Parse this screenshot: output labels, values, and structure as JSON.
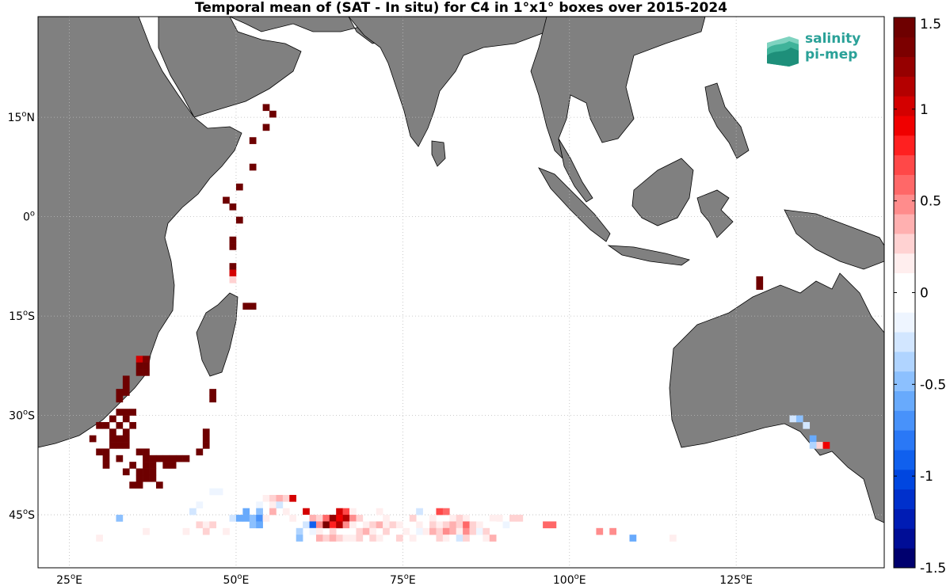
{
  "title": "Temporal mean of (SAT - In situ) for C4 in 1°x1° boxes over 2015-2024",
  "lat_ticks": [
    {
      "lat": 15,
      "deg": "15",
      "hemi": "N"
    },
    {
      "lat": 0,
      "deg": "0",
      "hemi": ""
    },
    {
      "lat": -15,
      "deg": "15",
      "hemi": "S"
    },
    {
      "lat": -30,
      "deg": "30",
      "hemi": "S"
    },
    {
      "lat": -45,
      "deg": "45",
      "hemi": "S"
    }
  ],
  "lon_ticks": [
    {
      "lon": 25,
      "deg": "25",
      "hemi": "E"
    },
    {
      "lon": 50,
      "deg": "50",
      "hemi": "E"
    },
    {
      "lon": 75,
      "deg": "75",
      "hemi": "E"
    },
    {
      "lon": 100,
      "deg": "100",
      "hemi": "E"
    },
    {
      "lon": 125,
      "deg": "125",
      "hemi": "E"
    }
  ],
  "colorbar": {
    "min": -1.5,
    "max": 1.5,
    "labels": [
      "1.5",
      "1",
      "0.5",
      "0",
      "-0.5",
      "-1",
      "-1.5"
    ],
    "label_values": [
      1.5,
      1,
      0.5,
      0,
      -0.5,
      -1,
      -1.5
    ],
    "colors": [
      "#00006e",
      "#000d96",
      "#001cb4",
      "#0030cc",
      "#0046e0",
      "#1060ee",
      "#2a78f6",
      "#4892fa",
      "#68aafc",
      "#8cc0fe",
      "#b0d4ff",
      "#d2e6ff",
      "#eef5ff",
      "#ffffff",
      "#ffffff",
      "#ffeeee",
      "#ffd2d2",
      "#ffb0b0",
      "#ff8c8c",
      "#ff6868",
      "#ff4848",
      "#ff2020",
      "#f00000",
      "#d40000",
      "#b40000",
      "#960000",
      "#7c0000",
      "#6e0000"
    ]
  },
  "logo": {
    "line1": "salinity",
    "line2": "pi-mep",
    "color": "#2aa198"
  },
  "map_colors": {
    "land": "#808080",
    "grid": "#bbbbbb",
    "coast": "#000000"
  },
  "boxes": [
    {
      "lon": 54,
      "lat": 16,
      "v": 1.6
    },
    {
      "lon": 55,
      "lat": 15,
      "v": 1.6
    },
    {
      "lon": 54,
      "lat": 13,
      "v": 1.6
    },
    {
      "lon": 52,
      "lat": 11,
      "v": 1.6
    },
    {
      "lon": 52,
      "lat": 7,
      "v": 1.6
    },
    {
      "lon": 50,
      "lat": 4,
      "v": 1.6
    },
    {
      "lon": 48,
      "lat": 2,
      "v": 1.6
    },
    {
      "lon": 49,
      "lat": 1,
      "v": 1.6
    },
    {
      "lon": 50,
      "lat": -1,
      "v": 1.6
    },
    {
      "lon": 49,
      "lat": -4,
      "v": 1.6
    },
    {
      "lon": 49,
      "lat": -5,
      "v": 1.6
    },
    {
      "lon": 49,
      "lat": -8,
      "v": 1.6
    },
    {
      "lon": 49,
      "lat": -9,
      "v": 1.0
    },
    {
      "lon": 49,
      "lat": -10,
      "v": 0.3
    },
    {
      "lon": 51,
      "lat": -14,
      "v": 1.6
    },
    {
      "lon": 52,
      "lat": -14,
      "v": 1.6
    },
    {
      "lon": 128,
      "lat": -10,
      "v": 1.6
    },
    {
      "lon": 128,
      "lat": -11,
      "v": 1.6
    },
    {
      "lon": 35,
      "lat": -22,
      "v": 1.0
    },
    {
      "lon": 36,
      "lat": -22,
      "v": 1.3
    },
    {
      "lon": 35,
      "lat": -23,
      "v": 1.6
    },
    {
      "lon": 36,
      "lat": -23,
      "v": 1.6
    },
    {
      "lon": 35,
      "lat": -24,
      "v": 1.6
    },
    {
      "lon": 36,
      "lat": -24,
      "v": 1.6
    },
    {
      "lon": 33,
      "lat": -25,
      "v": 1.6
    },
    {
      "lon": 33,
      "lat": -26,
      "v": 1.6
    },
    {
      "lon": 32,
      "lat": -27,
      "v": 1.6
    },
    {
      "lon": 33,
      "lat": -27,
      "v": 1.6
    },
    {
      "lon": 32,
      "lat": -28,
      "v": 1.6
    },
    {
      "lon": 46,
      "lat": -27,
      "v": 1.6
    },
    {
      "lon": 46,
      "lat": -28,
      "v": 1.6
    },
    {
      "lon": 32,
      "lat": -30,
      "v": 1.6
    },
    {
      "lon": 33,
      "lat": -30,
      "v": 1.6
    },
    {
      "lon": 34,
      "lat": -30,
      "v": 1.6
    },
    {
      "lon": 31,
      "lat": -31,
      "v": 1.6
    },
    {
      "lon": 33,
      "lat": -31,
      "v": 1.6
    },
    {
      "lon": 29,
      "lat": -32,
      "v": 1.6
    },
    {
      "lon": 30,
      "lat": -32,
      "v": 1.6
    },
    {
      "lon": 32,
      "lat": -32,
      "v": 1.6
    },
    {
      "lon": 34,
      "lat": -32,
      "v": 1.6
    },
    {
      "lon": 31,
      "lat": -33,
      "v": 1.6
    },
    {
      "lon": 33,
      "lat": -33,
      "v": 1.6
    },
    {
      "lon": 28,
      "lat": -34,
      "v": 1.6
    },
    {
      "lon": 31,
      "lat": -34,
      "v": 1.6
    },
    {
      "lon": 32,
      "lat": -34,
      "v": 1.6
    },
    {
      "lon": 33,
      "lat": -34,
      "v": 1.6
    },
    {
      "lon": 45,
      "lat": -33,
      "v": 1.6
    },
    {
      "lon": 45,
      "lat": -34,
      "v": 1.6
    },
    {
      "lon": 31,
      "lat": -35,
      "v": 1.6
    },
    {
      "lon": 32,
      "lat": -35,
      "v": 1.6
    },
    {
      "lon": 33,
      "lat": -35,
      "v": 1.6
    },
    {
      "lon": 45,
      "lat": -35,
      "v": 1.6
    },
    {
      "lon": 29,
      "lat": -36,
      "v": 1.6
    },
    {
      "lon": 30,
      "lat": -36,
      "v": 1.6
    },
    {
      "lon": 35,
      "lat": -36,
      "v": 1.6
    },
    {
      "lon": 36,
      "lat": -36,
      "v": 1.6
    },
    {
      "lon": 44,
      "lat": -36,
      "v": 1.6
    },
    {
      "lon": 30,
      "lat": -37,
      "v": 1.6
    },
    {
      "lon": 32,
      "lat": -37,
      "v": 1.6
    },
    {
      "lon": 36,
      "lat": -37,
      "v": 1.6
    },
    {
      "lon": 37,
      "lat": -37,
      "v": 1.6
    },
    {
      "lon": 38,
      "lat": -37,
      "v": 1.6
    },
    {
      "lon": 39,
      "lat": -37,
      "v": 1.6
    },
    {
      "lon": 40,
      "lat": -37,
      "v": 1.6
    },
    {
      "lon": 41,
      "lat": -37,
      "v": 1.6
    },
    {
      "lon": 42,
      "lat": -37,
      "v": 1.6
    },
    {
      "lon": 30,
      "lat": -38,
      "v": 1.6
    },
    {
      "lon": 34,
      "lat": -38,
      "v": 1.6
    },
    {
      "lon": 36,
      "lat": -38,
      "v": 1.6
    },
    {
      "lon": 37,
      "lat": -38,
      "v": 1.6
    },
    {
      "lon": 39,
      "lat": -38,
      "v": 1.6
    },
    {
      "lon": 40,
      "lat": -38,
      "v": 1.6
    },
    {
      "lon": 33,
      "lat": -39,
      "v": 1.6
    },
    {
      "lon": 35,
      "lat": -39,
      "v": 1.6
    },
    {
      "lon": 36,
      "lat": -39,
      "v": 1.6
    },
    {
      "lon": 37,
      "lat": -39,
      "v": 1.6
    },
    {
      "lon": 35,
      "lat": -40,
      "v": 1.6
    },
    {
      "lon": 36,
      "lat": -40,
      "v": 1.6
    },
    {
      "lon": 37,
      "lat": -40,
      "v": 1.6
    },
    {
      "lon": 34,
      "lat": -41,
      "v": 1.6
    },
    {
      "lon": 35,
      "lat": -41,
      "v": 1.6
    },
    {
      "lon": 38,
      "lat": -41,
      "v": 1.6
    },
    {
      "lon": 133,
      "lat": -31,
      "v": -0.3
    },
    {
      "lon": 134,
      "lat": -31,
      "v": -0.5
    },
    {
      "lon": 135,
      "lat": -32,
      "v": -0.3
    },
    {
      "lon": 136,
      "lat": -34,
      "v": -0.6
    },
    {
      "lon": 137,
      "lat": -35,
      "v": 0.3
    },
    {
      "lon": 136,
      "lat": -35,
      "v": -0.4
    },
    {
      "lon": 138,
      "lat": -35,
      "v": 0.9
    },
    {
      "lon": 46,
      "lat": -42,
      "v": -0.2
    },
    {
      "lon": 47,
      "lat": -42,
      "v": -0.2
    },
    {
      "lon": 45,
      "lat": -43,
      "v": -0.1
    },
    {
      "lon": 54,
      "lat": -43,
      "v": 0.2
    },
    {
      "lon": 55,
      "lat": -43,
      "v": 0.3
    },
    {
      "lon": 56,
      "lat": -43,
      "v": 0.4
    },
    {
      "lon": 57,
      "lat": -43,
      "v": 0.3
    },
    {
      "lon": 58,
      "lat": -43,
      "v": 1.0
    },
    {
      "lon": 53,
      "lat": -44,
      "v": -0.2
    },
    {
      "lon": 55,
      "lat": -44,
      "v": 0.2
    },
    {
      "lon": 56,
      "lat": -44,
      "v": -0.3
    },
    {
      "lon": 44,
      "lat": -44,
      "v": -0.2
    },
    {
      "lon": 43,
      "lat": -45,
      "v": -0.3
    },
    {
      "lon": 51,
      "lat": -45,
      "v": -0.6
    },
    {
      "lon": 53,
      "lat": -45,
      "v": -0.5
    },
    {
      "lon": 55,
      "lat": -45,
      "v": 0.4
    },
    {
      "lon": 57,
      "lat": -45,
      "v": 0.2
    },
    {
      "lon": 60,
      "lat": -45,
      "v": 1.0
    },
    {
      "lon": 65,
      "lat": -45,
      "v": 1.0
    },
    {
      "lon": 66,
      "lat": -45,
      "v": 0.7
    },
    {
      "lon": 67,
      "lat": -45,
      "v": 0.2
    },
    {
      "lon": 71,
      "lat": -45,
      "v": 0.2
    },
    {
      "lon": 77,
      "lat": -45,
      "v": -0.3
    },
    {
      "lon": 80,
      "lat": -45,
      "v": 0.7
    },
    {
      "lon": 81,
      "lat": -45,
      "v": 0.6
    },
    {
      "lon": 32,
      "lat": -46,
      "v": -0.5
    },
    {
      "lon": 49,
      "lat": -46,
      "v": -0.3
    },
    {
      "lon": 50,
      "lat": -46,
      "v": -0.6
    },
    {
      "lon": 51,
      "lat": -46,
      "v": -0.6
    },
    {
      "lon": 52,
      "lat": -46,
      "v": -0.5
    },
    {
      "lon": 53,
      "lat": -46,
      "v": -0.7
    },
    {
      "lon": 54,
      "lat": -46,
      "v": 0.2
    },
    {
      "lon": 58,
      "lat": -46,
      "v": 0.2
    },
    {
      "lon": 60,
      "lat": -46,
      "v": -0.1
    },
    {
      "lon": 61,
      "lat": -46,
      "v": 0.4
    },
    {
      "lon": 62,
      "lat": -46,
      "v": 0.3
    },
    {
      "lon": 63,
      "lat": -46,
      "v": 0.6
    },
    {
      "lon": 64,
      "lat": -46,
      "v": 1.2
    },
    {
      "lon": 65,
      "lat": -46,
      "v": 0.9
    },
    {
      "lon": 66,
      "lat": -46,
      "v": 1.1
    },
    {
      "lon": 67,
      "lat": -46,
      "v": 0.5
    },
    {
      "lon": 68,
      "lat": -46,
      "v": 0.3
    },
    {
      "lon": 72,
      "lat": -46,
      "v": 0.2
    },
    {
      "lon": 76,
      "lat": -46,
      "v": 0.3
    },
    {
      "lon": 79,
      "lat": -46,
      "v": 0.2
    },
    {
      "lon": 82,
      "lat": -46,
      "v": 0.2
    },
    {
      "lon": 83,
      "lat": -46,
      "v": 0.3
    },
    {
      "lon": 84,
      "lat": -46,
      "v": 0.2
    },
    {
      "lon": 88,
      "lat": -46,
      "v": 0.2
    },
    {
      "lon": 89,
      "lat": -46,
      "v": 0.2
    },
    {
      "lon": 90,
      "lat": -46,
      "v": 0.1
    },
    {
      "lon": 91,
      "lat": -46,
      "v": 0.3
    },
    {
      "lon": 92,
      "lat": -46,
      "v": 0.3
    },
    {
      "lon": 44,
      "lat": -47,
      "v": 0.3
    },
    {
      "lon": 45,
      "lat": -47,
      "v": 0.2
    },
    {
      "lon": 46,
      "lat": -47,
      "v": 0.3
    },
    {
      "lon": 52,
      "lat": -47,
      "v": -0.5
    },
    {
      "lon": 53,
      "lat": -47,
      "v": -0.6
    },
    {
      "lon": 60,
      "lat": -47,
      "v": -0.3
    },
    {
      "lon": 61,
      "lat": -47,
      "v": -0.9
    },
    {
      "lon": 62,
      "lat": -47,
      "v": 0.5
    },
    {
      "lon": 63,
      "lat": -47,
      "v": 1.3
    },
    {
      "lon": 64,
      "lat": -47,
      "v": 0.8
    },
    {
      "lon": 65,
      "lat": -47,
      "v": 1.1
    },
    {
      "lon": 66,
      "lat": -47,
      "v": 0.5
    },
    {
      "lon": 67,
      "lat": -47,
      "v": 0.2
    },
    {
      "lon": 69,
      "lat": -47,
      "v": 0.2
    },
    {
      "lon": 70,
      "lat": -47,
      "v": 0.3
    },
    {
      "lon": 71,
      "lat": -47,
      "v": 0.4
    },
    {
      "lon": 72,
      "lat": -47,
      "v": 0.2
    },
    {
      "lon": 73,
      "lat": -47,
      "v": 0.3
    },
    {
      "lon": 74,
      "lat": -47,
      "v": 0.2
    },
    {
      "lon": 77,
      "lat": -47,
      "v": 0.2
    },
    {
      "lon": 78,
      "lat": -47,
      "v": -0.1
    },
    {
      "lon": 79,
      "lat": -47,
      "v": 0.3
    },
    {
      "lon": 80,
      "lat": -47,
      "v": 0.2
    },
    {
      "lon": 81,
      "lat": -47,
      "v": 0.3
    },
    {
      "lon": 82,
      "lat": -47,
      "v": 0.4
    },
    {
      "lon": 83,
      "lat": -47,
      "v": 0.3
    },
    {
      "lon": 84,
      "lat": -47,
      "v": 0.6
    },
    {
      "lon": 85,
      "lat": -47,
      "v": 0.3
    },
    {
      "lon": 86,
      "lat": -47,
      "v": 0.2
    },
    {
      "lon": 88,
      "lat": -47,
      "v": -0.1
    },
    {
      "lon": 90,
      "lat": -47,
      "v": -0.2
    },
    {
      "lon": 96,
      "lat": -47,
      "v": 0.6
    },
    {
      "lon": 97,
      "lat": -47,
      "v": 0.6
    },
    {
      "lon": 36,
      "lat": -48,
      "v": 0.2
    },
    {
      "lon": 42,
      "lat": -48,
      "v": 0.2
    },
    {
      "lon": 45,
      "lat": -48,
      "v": 0.3
    },
    {
      "lon": 48,
      "lat": -48,
      "v": 0.2
    },
    {
      "lon": 59,
      "lat": -48,
      "v": -0.4
    },
    {
      "lon": 61,
      "lat": -48,
      "v": -0.2
    },
    {
      "lon": 62,
      "lat": -48,
      "v": 0.2
    },
    {
      "lon": 64,
      "lat": -48,
      "v": 0.3
    },
    {
      "lon": 68,
      "lat": -48,
      "v": 0.3
    },
    {
      "lon": 69,
      "lat": -48,
      "v": 0.4
    },
    {
      "lon": 70,
      "lat": -48,
      "v": 0.2
    },
    {
      "lon": 72,
      "lat": -48,
      "v": 0.3
    },
    {
      "lon": 75,
      "lat": -48,
      "v": 0.2
    },
    {
      "lon": 77,
      "lat": -48,
      "v": -0.2
    },
    {
      "lon": 78,
      "lat": -48,
      "v": 0.2
    },
    {
      "lon": 79,
      "lat": -48,
      "v": 0.4
    },
    {
      "lon": 80,
      "lat": -48,
      "v": 0.3
    },
    {
      "lon": 81,
      "lat": -48,
      "v": 0.5
    },
    {
      "lon": 82,
      "lat": -48,
      "v": 0.4
    },
    {
      "lon": 83,
      "lat": -48,
      "v": 0.2
    },
    {
      "lon": 84,
      "lat": -48,
      "v": 0.5
    },
    {
      "lon": 85,
      "lat": -48,
      "v": 0.3
    },
    {
      "lon": 86,
      "lat": -48,
      "v": -0.2
    },
    {
      "lon": 87,
      "lat": -48,
      "v": 0.3
    },
    {
      "lon": 104,
      "lat": -48,
      "v": 0.5
    },
    {
      "lon": 106,
      "lat": -48,
      "v": 0.5
    },
    {
      "lon": 29,
      "lat": -49,
      "v": 0.2
    },
    {
      "lon": 59,
      "lat": -49,
      "v": -0.5
    },
    {
      "lon": 62,
      "lat": -49,
      "v": 0.4
    },
    {
      "lon": 63,
      "lat": -49,
      "v": 0.3
    },
    {
      "lon": 64,
      "lat": -49,
      "v": 0.4
    },
    {
      "lon": 65,
      "lat": -49,
      "v": 0.3
    },
    {
      "lon": 66,
      "lat": -49,
      "v": 0.2
    },
    {
      "lon": 67,
      "lat": -49,
      "v": 0.2
    },
    {
      "lon": 68,
      "lat": -49,
      "v": 0.3
    },
    {
      "lon": 70,
      "lat": -49,
      "v": 0.3
    },
    {
      "lon": 71,
      "lat": -49,
      "v": 0.2
    },
    {
      "lon": 74,
      "lat": -49,
      "v": 0.3
    },
    {
      "lon": 76,
      "lat": -49,
      "v": 0.2
    },
    {
      "lon": 80,
      "lat": -49,
      "v": 0.3
    },
    {
      "lon": 81,
      "lat": -49,
      "v": 0.2
    },
    {
      "lon": 82,
      "lat": -49,
      "v": -0.1
    },
    {
      "lon": 83,
      "lat": -49,
      "v": -0.3
    },
    {
      "lon": 84,
      "lat": -49,
      "v": 0.3
    },
    {
      "lon": 87,
      "lat": -49,
      "v": 0.2
    },
    {
      "lon": 88,
      "lat": -49,
      "v": 0.4
    },
    {
      "lon": 109,
      "lat": -49,
      "v": -0.6
    },
    {
      "lon": 115,
      "lat": -49,
      "v": 0.2
    }
  ]
}
